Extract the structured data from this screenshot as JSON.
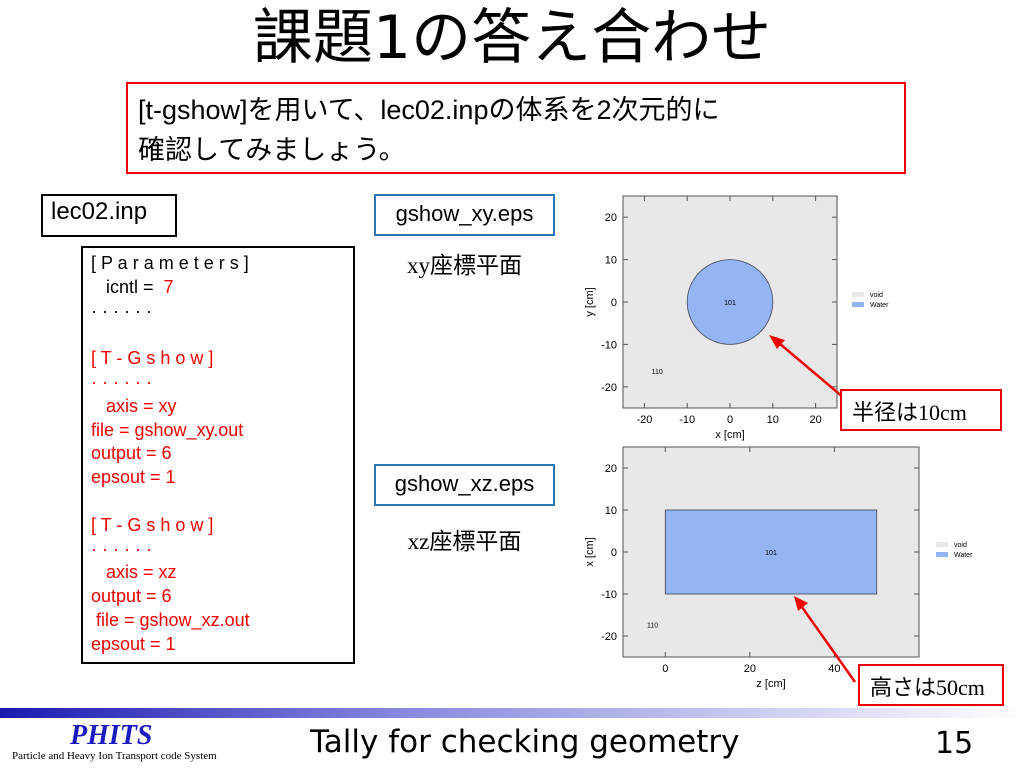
{
  "title": "課題1の答え合わせ",
  "task": {
    "line1": "[t-gshow]を用いて、lec02.inpの体系を2次元的に",
    "line2": "確認してみましょう。"
  },
  "input_file": "lec02.inp",
  "code_lines": [
    {
      "text": "[ P a r a m e t e r s ]",
      "color": "black"
    },
    {
      "text": "   icntl =  ",
      "value": "7",
      "color": "black"
    },
    {
      "text": "· · · · · ·",
      "color": "black"
    },
    {
      "text": "",
      "color": "black"
    },
    {
      "text": "[ T - G s h o w ]",
      "color": "red"
    },
    {
      "text": "· · · · · ·",
      "color": "red"
    },
    {
      "text": "   axis = xy",
      "color": "red"
    },
    {
      "text": "file = gshow_xy.out",
      "color": "red"
    },
    {
      "text": "output = 6",
      "color": "red"
    },
    {
      "text": "epsout = 1",
      "color": "red"
    },
    {
      "text": "",
      "color": "red"
    },
    {
      "text": "[ T - G s h o w ]",
      "color": "red"
    },
    {
      "text": "· · · · · ·",
      "color": "red"
    },
    {
      "text": "   axis = xz",
      "color": "red"
    },
    {
      "text": "output = 6",
      "color": "red"
    },
    {
      "text": " file = gshow_xz.out",
      "color": "red"
    },
    {
      "text": "epsout = 1",
      "color": "red"
    }
  ],
  "eps_xy": {
    "file": "gshow_xy.eps",
    "plane": "xy座標平面"
  },
  "eps_xz": {
    "file": "gshow_xz.eps",
    "plane": "xz座標平面"
  },
  "callouts": {
    "radius": "半径は10cm",
    "height": "高さは50cm"
  },
  "colors": {
    "void": "#e8e8e8",
    "water": "#94b4f4",
    "accent": "#e00000"
  },
  "chart_data": [
    {
      "type": "geometry",
      "xlabel": "x [cm]",
      "ylabel": "y [cm]",
      "xlim": [
        -25,
        25
      ],
      "ylim": [
        -25,
        25
      ],
      "xticks": [
        -20,
        -10,
        0,
        10,
        20
      ],
      "yticks": [
        -20,
        -10,
        0,
        10,
        20
      ],
      "shapes": [
        {
          "kind": "circle",
          "cx": 0,
          "cy": 0,
          "r": 10,
          "label": "101",
          "material": "Water"
        }
      ],
      "region_label": {
        "text": "110",
        "x": -17,
        "y": -17
      },
      "legend": [
        {
          "name": "void",
          "color": "#e8e8e8"
        },
        {
          "name": "Water",
          "color": "#94b4f4"
        }
      ]
    },
    {
      "type": "geometry",
      "xlabel": "z [cm]",
      "ylabel": "x [cm]",
      "xlim": [
        -10,
        60
      ],
      "ylim": [
        -25,
        25
      ],
      "xticks": [
        0,
        20,
        40
      ],
      "yticks": [
        -20,
        -10,
        0,
        10,
        20
      ],
      "shapes": [
        {
          "kind": "rect",
          "x0": 0,
          "x1": 50,
          "y0": -10,
          "y1": 10,
          "label": "101",
          "material": "Water"
        }
      ],
      "region_label": {
        "text": "110",
        "x": -3,
        "y": -18
      },
      "legend": [
        {
          "name": "void",
          "color": "#e8e8e8"
        },
        {
          "name": "Water",
          "color": "#94b4f4"
        }
      ]
    }
  ],
  "footer": {
    "logo": "PHITS",
    "logo_sub": "Particle and Heavy Ion Transport code System",
    "title": "Tally for checking geometry",
    "page": "15"
  }
}
